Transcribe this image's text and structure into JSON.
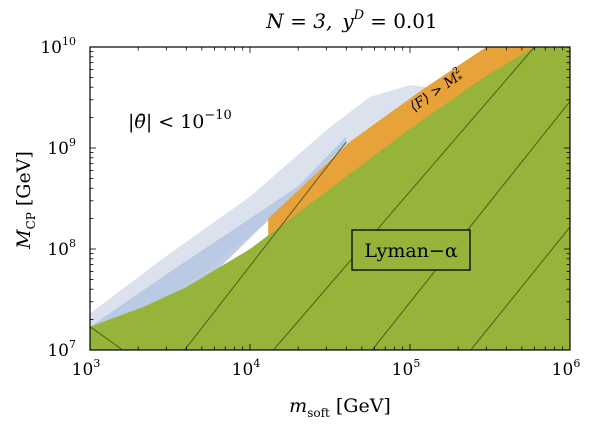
{
  "chart_data": {
    "type": "area",
    "title": "N = 3,  y^D = 0.01",
    "title_parts": {
      "n_eq": "N = 3,",
      "y": "y",
      "y_sup": "D",
      "y_eq": "= 0.01"
    },
    "xlabel": "m_soft [GeV]",
    "xlabel_parts": {
      "main": "m",
      "sub": "soft",
      "unit": "[GeV]"
    },
    "ylabel": "M_CP [GeV]",
    "ylabel_parts": {
      "main": "M",
      "sub": "CP",
      "unit": "[GeV]"
    },
    "x_scale": "log",
    "y_scale": "log",
    "xlim": [
      1000,
      1000000
    ],
    "ylim": [
      10000000,
      10000000000
    ],
    "x_ticks": [
      {
        "base": "10",
        "exp": "3",
        "value": 1000
      },
      {
        "base": "10",
        "exp": "4",
        "value": 10000
      },
      {
        "base": "10",
        "exp": "5",
        "value": 100000
      },
      {
        "base": "10",
        "exp": "6",
        "value": 1000000
      }
    ],
    "y_ticks": [
      {
        "base": "10",
        "exp": "7",
        "value": 10000000
      },
      {
        "base": "10",
        "exp": "8",
        "value": 100000000
      },
      {
        "base": "10",
        "exp": "9",
        "value": 1000000000
      },
      {
        "base": "10",
        "exp": "10",
        "value": 10000000000
      }
    ],
    "colors": {
      "theta_outer": "#dbe2ee",
      "theta_inner": "#b4c6e2",
      "F_region": "#e8a23a",
      "lyman": "#96b33a",
      "contour": "#3b4a14"
    },
    "regions": [
      {
        "name": "theta_outer",
        "points": [
          [
            1000,
            23000000
          ],
          [
            3000,
            85000000
          ],
          [
            10000,
            330000000
          ],
          [
            30000,
            1500000000
          ],
          [
            56000,
            3200000000
          ],
          [
            100000,
            4200000000
          ],
          [
            130000,
            4000000000
          ],
          [
            50000,
            1300000000
          ],
          [
            20000,
            330000000
          ],
          [
            5000,
            56000000
          ],
          [
            1000,
            10000000
          ]
        ]
      },
      {
        "name": "theta_inner",
        "points": [
          [
            1000,
            17000000
          ],
          [
            3000,
            56000000
          ],
          [
            10000,
            200000000
          ],
          [
            20000,
            420000000
          ],
          [
            40000,
            1300000000
          ],
          [
            40000,
            1100000000
          ],
          [
            15000,
            240000000
          ],
          [
            3000,
            20000000
          ],
          [
            1000,
            10000000
          ]
        ]
      },
      {
        "name": "F_region",
        "points": [
          [
            13000,
            200000000
          ],
          [
            42000,
            1150000000
          ],
          [
            120000,
            3800000000
          ],
          [
            300000,
            10000000000
          ],
          [
            1000000,
            10000000000
          ],
          [
            1000000,
            10000000
          ],
          [
            13000,
            10000000
          ]
        ]
      },
      {
        "name": "lyman",
        "points": [
          [
            1000,
            10000000
          ],
          [
            1000,
            17000000
          ],
          [
            2200,
            27000000
          ],
          [
            4000,
            42000000
          ],
          [
            10000,
            100000000
          ],
          [
            30000,
            370000000
          ],
          [
            100000,
            1550000000
          ],
          [
            300000,
            5200000000
          ],
          [
            600000,
            10000000000
          ],
          [
            1000000,
            10000000000
          ],
          [
            1000000,
            10000000
          ]
        ]
      }
    ],
    "contours": [
      [
        [
          1600,
          10000000
        ],
        [
          1000,
          17000000
        ]
      ],
      [
        [
          3900,
          10000000
        ],
        [
          40000,
          1150000000
        ]
      ],
      [
        [
          14000,
          10000000
        ],
        [
          600000,
          10000000000
        ]
      ],
      [
        [
          58000,
          10000000
        ],
        [
          1000000,
          2900000000
        ]
      ],
      [
        [
          240000,
          10000000
        ],
        [
          1000000,
          165000000
        ]
      ]
    ],
    "labels": {
      "theta": {
        "bar": "|θ̄|",
        "lt": "< 10",
        "exp": "−10"
      },
      "F": {
        "lhs": "⟨F⟩ > M",
        "sup": "2",
        "sub": "*"
      },
      "lyman": "Lyman−α"
    }
  }
}
